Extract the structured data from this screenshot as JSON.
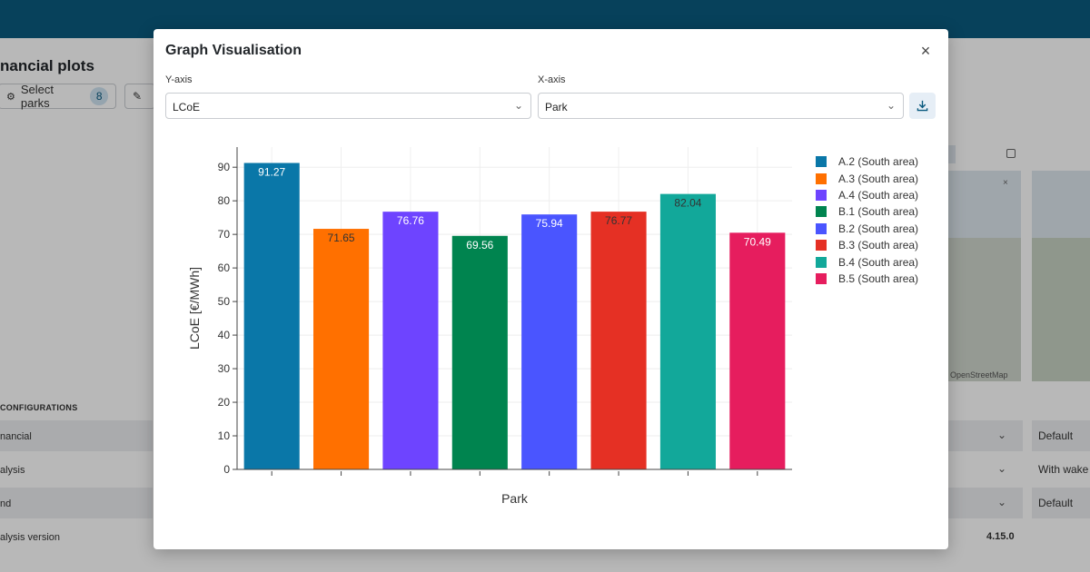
{
  "background": {
    "page_title": "nancial plots",
    "select_parks_label": "Select parks",
    "select_parks_count": "8",
    "section_title": "CONFIGURATIONS",
    "rows": [
      {
        "label": "nancial",
        "value": "Default"
      },
      {
        "label": "alysis",
        "value": "With wake"
      },
      {
        "label": "nd",
        "value": "Default"
      }
    ],
    "version_label": "alysis version",
    "version_value": "4.15.0",
    "map_attribution": "OpenStreetMap"
  },
  "modal": {
    "title": "Graph Visualisation",
    "close_icon": "close-icon",
    "y_axis": {
      "label": "Y-axis",
      "value": "LCoE"
    },
    "x_axis": {
      "label": "X-axis",
      "value": "Park"
    },
    "download_icon": "download-icon"
  },
  "chart_data": {
    "type": "bar",
    "categories": [
      "A.2 (South area)",
      "A.3 (South area)",
      "A.4 (South area)",
      "B.1 (South area)",
      "B.2 (South area)",
      "B.3 (South area)",
      "B.4 (South area)",
      "B.5 (South area)"
    ],
    "values": [
      91.27,
      71.65,
      76.76,
      69.56,
      75.94,
      76.77,
      82.04,
      70.49
    ],
    "value_labels": [
      "91.27",
      "71.65",
      "76.76",
      "69.56",
      "75.94",
      "76.77",
      "82.04",
      "70.49"
    ],
    "colors": [
      "#0a77a8",
      "#ff7000",
      "#6e44ff",
      "#00844f",
      "#4a55ff",
      "#e53024",
      "#12a89a",
      "#e61d5e"
    ],
    "label_colors": [
      "#ffffff",
      "#333333",
      "#ffffff",
      "#ffffff",
      "#ffffff",
      "#333333",
      "#333333",
      "#ffffff"
    ],
    "xlabel": "Park",
    "ylabel": "LCoE [€/MWh]",
    "ylim": [
      0,
      96
    ],
    "yticks": [
      0,
      10,
      20,
      30,
      40,
      50,
      60,
      70,
      80,
      90
    ],
    "grid": true,
    "legend_position": "right"
  }
}
